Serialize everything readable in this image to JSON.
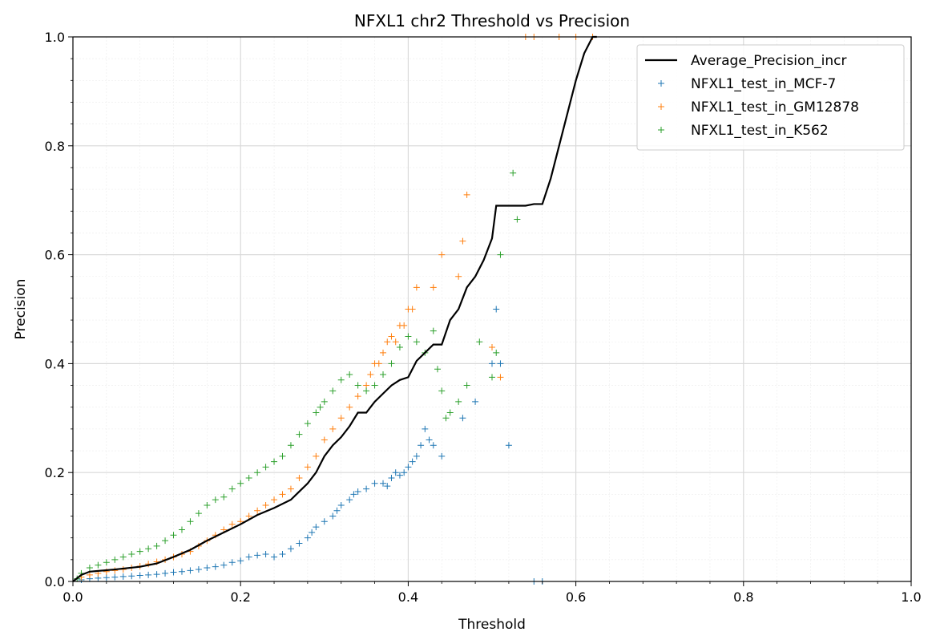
{
  "chart_data": {
    "type": "scatter",
    "title": "NFXL1 chr2 Threshold vs Precision",
    "xlabel": "Threshold",
    "ylabel": "Precision",
    "xlim": [
      0.0,
      1.0
    ],
    "ylim": [
      0.0,
      1.0
    ],
    "xticks": [
      "0.0",
      "0.2",
      "0.4",
      "0.6",
      "0.8",
      "1.0"
    ],
    "yticks": [
      "0.0",
      "0.2",
      "0.4",
      "0.6",
      "0.8",
      "1.0"
    ],
    "grid": "major and minor",
    "legend_position": "top-right",
    "line": {
      "name": "Average_Precision_incr",
      "color": "#000000",
      "x": [
        0.0,
        0.01,
        0.02,
        0.05,
        0.08,
        0.1,
        0.12,
        0.14,
        0.16,
        0.18,
        0.2,
        0.22,
        0.24,
        0.26,
        0.27,
        0.28,
        0.29,
        0.3,
        0.31,
        0.32,
        0.33,
        0.34,
        0.35,
        0.36,
        0.37,
        0.38,
        0.39,
        0.4,
        0.41,
        0.42,
        0.43,
        0.44,
        0.45,
        0.46,
        0.47,
        0.48,
        0.49,
        0.5,
        0.505,
        0.51,
        0.52,
        0.53,
        0.54,
        0.55,
        0.56,
        0.57,
        0.58,
        0.59,
        0.6,
        0.61,
        0.62,
        0.625
      ],
      "y": [
        0.0,
        0.012,
        0.018,
        0.022,
        0.027,
        0.033,
        0.045,
        0.058,
        0.075,
        0.09,
        0.105,
        0.122,
        0.135,
        0.15,
        0.165,
        0.18,
        0.2,
        0.23,
        0.25,
        0.265,
        0.285,
        0.31,
        0.31,
        0.33,
        0.345,
        0.36,
        0.37,
        0.375,
        0.405,
        0.42,
        0.435,
        0.435,
        0.48,
        0.5,
        0.54,
        0.56,
        0.59,
        0.63,
        0.69,
        0.69,
        0.69,
        0.69,
        0.69,
        0.693,
        0.693,
        0.74,
        0.8,
        0.86,
        0.92,
        0.97,
        1.0,
        1.0
      ]
    },
    "series": [
      {
        "name": "NFXL1_test_in_MCF-7",
        "color": "#1f77b4",
        "x": [
          0.01,
          0.02,
          0.03,
          0.04,
          0.05,
          0.06,
          0.07,
          0.08,
          0.09,
          0.1,
          0.11,
          0.12,
          0.13,
          0.14,
          0.15,
          0.16,
          0.17,
          0.18,
          0.19,
          0.2,
          0.21,
          0.22,
          0.23,
          0.24,
          0.25,
          0.26,
          0.27,
          0.28,
          0.285,
          0.29,
          0.3,
          0.31,
          0.315,
          0.32,
          0.33,
          0.335,
          0.34,
          0.35,
          0.36,
          0.37,
          0.375,
          0.38,
          0.385,
          0.39,
          0.395,
          0.4,
          0.405,
          0.41,
          0.415,
          0.42,
          0.425,
          0.43,
          0.44,
          0.465,
          0.48,
          0.5,
          0.505,
          0.51,
          0.52,
          0.55,
          0.56
        ],
        "y": [
          0.003,
          0.005,
          0.006,
          0.007,
          0.008,
          0.009,
          0.01,
          0.011,
          0.012,
          0.013,
          0.015,
          0.017,
          0.018,
          0.02,
          0.022,
          0.025,
          0.027,
          0.03,
          0.035,
          0.038,
          0.045,
          0.048,
          0.05,
          0.045,
          0.05,
          0.06,
          0.07,
          0.08,
          0.09,
          0.1,
          0.11,
          0.12,
          0.13,
          0.14,
          0.15,
          0.16,
          0.165,
          0.17,
          0.18,
          0.18,
          0.175,
          0.19,
          0.2,
          0.195,
          0.2,
          0.21,
          0.22,
          0.23,
          0.25,
          0.28,
          0.26,
          0.25,
          0.23,
          0.3,
          0.33,
          0.4,
          0.5,
          0.4,
          0.25,
          0.0,
          0.0
        ]
      },
      {
        "name": "NFXL1_test_in_GM12878",
        "color": "#ff7f0e",
        "x": [
          0.01,
          0.02,
          0.03,
          0.04,
          0.05,
          0.06,
          0.07,
          0.08,
          0.09,
          0.1,
          0.11,
          0.12,
          0.13,
          0.14,
          0.15,
          0.16,
          0.17,
          0.18,
          0.19,
          0.2,
          0.21,
          0.22,
          0.23,
          0.24,
          0.25,
          0.26,
          0.27,
          0.28,
          0.29,
          0.3,
          0.31,
          0.32,
          0.33,
          0.34,
          0.35,
          0.355,
          0.36,
          0.365,
          0.37,
          0.375,
          0.38,
          0.385,
          0.39,
          0.395,
          0.4,
          0.405,
          0.41,
          0.43,
          0.44,
          0.46,
          0.465,
          0.47,
          0.5,
          0.51,
          0.54,
          0.55,
          0.58,
          0.6,
          0.62
        ],
        "y": [
          0.008,
          0.012,
          0.015,
          0.018,
          0.02,
          0.022,
          0.025,
          0.028,
          0.032,
          0.036,
          0.04,
          0.045,
          0.05,
          0.055,
          0.065,
          0.075,
          0.085,
          0.095,
          0.105,
          0.11,
          0.12,
          0.13,
          0.14,
          0.15,
          0.16,
          0.17,
          0.19,
          0.21,
          0.23,
          0.26,
          0.28,
          0.3,
          0.32,
          0.34,
          0.36,
          0.38,
          0.4,
          0.4,
          0.42,
          0.44,
          0.45,
          0.44,
          0.47,
          0.47,
          0.5,
          0.5,
          0.54,
          0.54,
          0.6,
          0.56,
          0.625,
          0.71,
          0.43,
          0.375,
          1.0,
          1.0,
          1.0,
          1.0,
          1.0
        ]
      },
      {
        "name": "NFXL1_test_in_K562",
        "color": "#2ca02c",
        "x": [
          0.005,
          0.01,
          0.02,
          0.03,
          0.04,
          0.05,
          0.06,
          0.07,
          0.08,
          0.09,
          0.1,
          0.11,
          0.12,
          0.13,
          0.14,
          0.15,
          0.16,
          0.17,
          0.18,
          0.19,
          0.2,
          0.21,
          0.22,
          0.23,
          0.24,
          0.25,
          0.26,
          0.27,
          0.28,
          0.29,
          0.295,
          0.3,
          0.31,
          0.32,
          0.33,
          0.34,
          0.35,
          0.36,
          0.37,
          0.38,
          0.39,
          0.4,
          0.41,
          0.42,
          0.43,
          0.435,
          0.44,
          0.445,
          0.45,
          0.46,
          0.47,
          0.485,
          0.5,
          0.505,
          0.51,
          0.53,
          0.525
        ],
        "y": [
          0.005,
          0.015,
          0.025,
          0.03,
          0.035,
          0.04,
          0.045,
          0.05,
          0.055,
          0.06,
          0.065,
          0.075,
          0.085,
          0.095,
          0.11,
          0.125,
          0.14,
          0.15,
          0.155,
          0.17,
          0.18,
          0.19,
          0.2,
          0.21,
          0.22,
          0.23,
          0.25,
          0.27,
          0.29,
          0.31,
          0.32,
          0.33,
          0.35,
          0.37,
          0.38,
          0.36,
          0.35,
          0.36,
          0.38,
          0.4,
          0.43,
          0.45,
          0.44,
          0.42,
          0.46,
          0.39,
          0.35,
          0.3,
          0.31,
          0.33,
          0.36,
          0.44,
          0.375,
          0.42,
          0.6,
          0.665,
          0.75
        ]
      }
    ]
  }
}
